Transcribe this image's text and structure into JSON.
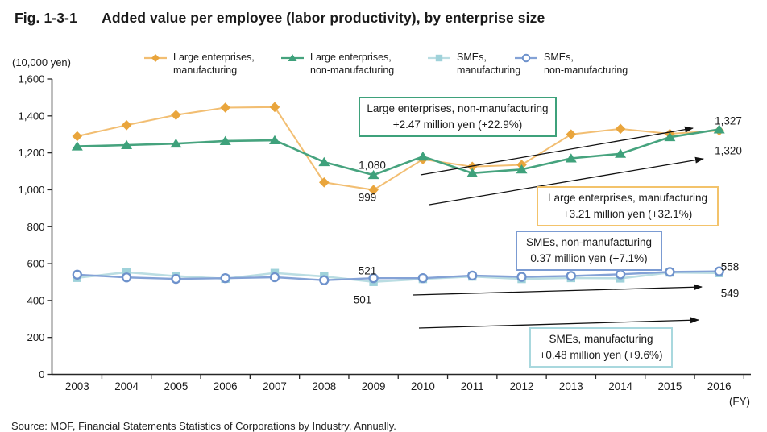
{
  "figure": {
    "fig_no": "Fig. 1-3-1",
    "title": "Added value per employee (labor productivity), by enterprise size"
  },
  "axis": {
    "unit_label": "(10,000 yen)",
    "fy_label": "(FY)",
    "y_ticks": [
      "0",
      "200",
      "400",
      "600",
      "800",
      "1,000",
      "1,200",
      "1,400",
      "1,600"
    ],
    "x_ticks": [
      "2003",
      "2004",
      "2005",
      "2006",
      "2007",
      "2008",
      "2009",
      "2010",
      "2011",
      "2012",
      "2013",
      "2014",
      "2015",
      "2016"
    ]
  },
  "legend": [
    {
      "line1": "Large enterprises,",
      "line2": "manufacturing"
    },
    {
      "line1": "Large enterprises,",
      "line2": "non-manufacturing"
    },
    {
      "line1": "SMEs,",
      "line2": "manufacturing"
    },
    {
      "line1": "SMEs,",
      "line2": "non-manufacturing"
    }
  ],
  "annotations": [
    {
      "line1": "Large enterprises, non-manufacturing",
      "line2": "+2.47 million yen (+22.9%)",
      "border_color": "#3EA17B"
    },
    {
      "line1": "Large enterprises, manufacturing",
      "line2": "+3.21 million yen (+32.1%)",
      "border_color": "#F3C36B"
    },
    {
      "line1": "SMEs, non-manufacturing",
      "line2": "0.37 million yen (+7.1%)",
      "border_color": "#7B9BD2"
    },
    {
      "line1": "SMEs, manufacturing",
      "line2": "+0.48 million yen (+9.6%)",
      "border_color": "#A9D8DE"
    }
  ],
  "point_labels": {
    "large_nonmfg_2009": "1,080",
    "large_mfg_2009": "999",
    "sme_nonmfg_2009": "521",
    "sme_mfg_2009": "501",
    "large_nonmfg_2016": "1,327",
    "large_mfg_2016": "1,320",
    "sme_nonmfg_2016": "558",
    "sme_mfg_2016": "549"
  },
  "source": "Source: MOF, Financial Statements Statistics of Corporations by Industry, Annually.",
  "chart_data": {
    "type": "line",
    "title": "Added value per employee (labor productivity), by enterprise size",
    "unit": "10,000 yen",
    "xlabel": "(FY)",
    "ylabel": "(10,000 yen)",
    "x": [
      2003,
      2004,
      2005,
      2006,
      2007,
      2008,
      2009,
      2010,
      2011,
      2012,
      2013,
      2014,
      2015,
      2016
    ],
    "ylim": [
      0,
      1600
    ],
    "ytick_step": 200,
    "grid": false,
    "legend_position": "top",
    "series": [
      {
        "name": "Large enterprises, manufacturing",
        "marker": "diamond",
        "color": "#E9A53C",
        "line_color": "#F2BE72",
        "line_width": 2,
        "values": [
          1290,
          1350,
          1405,
          1445,
          1448,
          1040,
          999,
          1165,
          1125,
          1135,
          1300,
          1330,
          1303,
          1320
        ]
      },
      {
        "name": "Large enterprises, non-manufacturing",
        "marker": "triangle",
        "color": "#3EA17B",
        "line_color": "#46A37E",
        "line_width": 2.6,
        "values": [
          1235,
          1242,
          1250,
          1264,
          1268,
          1150,
          1080,
          1180,
          1090,
          1110,
          1170,
          1195,
          1285,
          1327
        ]
      },
      {
        "name": "SMEs, manufacturing",
        "marker": "square",
        "color": "#9FD2DA",
        "line_color": "#BADDE2",
        "line_width": 2.6,
        "values": [
          523,
          553,
          532,
          518,
          549,
          530,
          501,
          517,
          530,
          517,
          522,
          520,
          552,
          549
        ]
      },
      {
        "name": "SMEs, non-manufacturing",
        "marker": "circle",
        "color": "#6E92CC",
        "line_color": "#84A2D6",
        "line_width": 2.4,
        "values": [
          540,
          525,
          517,
          521,
          526,
          510,
          521,
          521,
          535,
          528,
          533,
          542,
          555,
          558
        ]
      }
    ]
  }
}
